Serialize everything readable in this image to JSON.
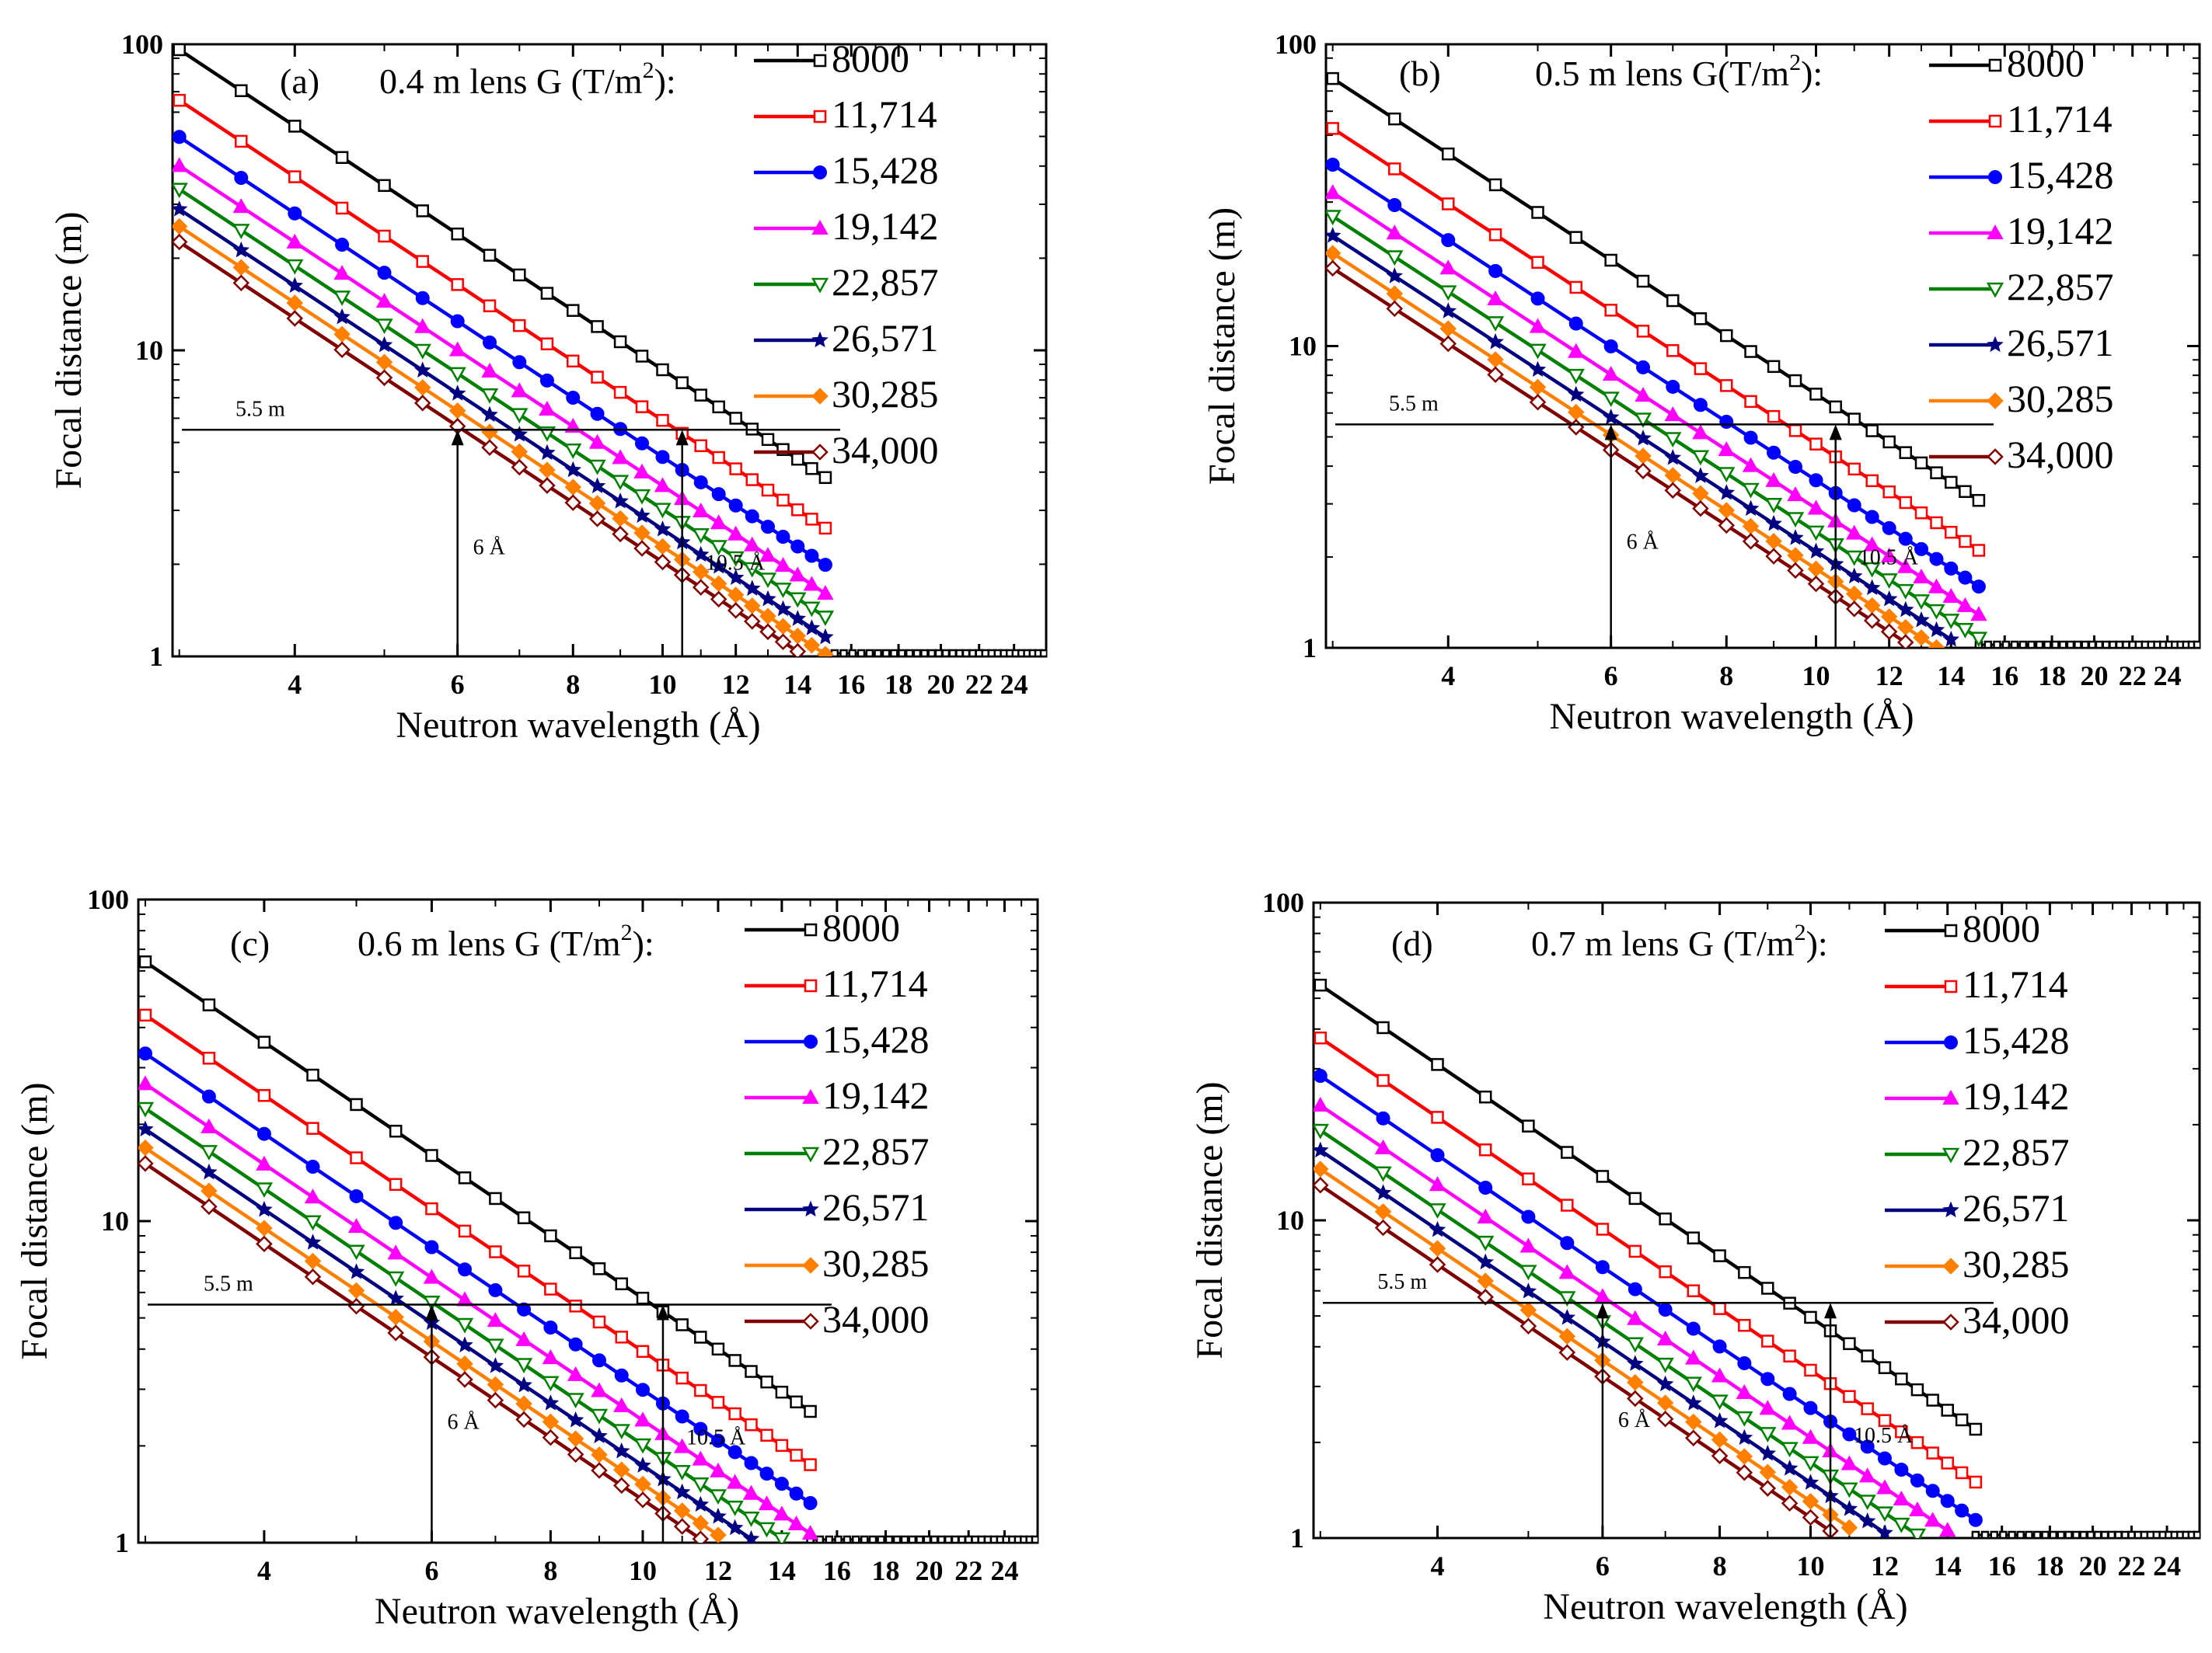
{
  "chart_data": [
    {
      "type": "line",
      "panel_label": "(a)",
      "title": "0.4 m lens G (T/m",
      "title_sup": "2",
      "title_tail": "):",
      "xlabel": "Neutron wavelength (Å)",
      "ylabel": "Focal distance (m)",
      "x_scale": "log",
      "y_scale": "log",
      "xlim": [
        2.95,
        26
      ],
      "ylim": [
        1,
        100
      ],
      "x_ticks": [
        4,
        6,
        8,
        10,
        12,
        14,
        16,
        18,
        20,
        22,
        24
      ],
      "x_tick_labels": [
        "4",
        "6",
        "8",
        "10",
        "12",
        "14",
        "16",
        "18",
        "20",
        "22",
        "24"
      ],
      "y_ticks": [
        1,
        10,
        100
      ],
      "y_tick_labels": [
        "1",
        "10",
        "100"
      ],
      "legend_title": "G (T/m²)",
      "series": [
        {
          "name": "8000",
          "F0": 96.0,
          "color": "#000000",
          "marker": "square-open"
        },
        {
          "name": "11,714",
          "F0": 65.6,
          "color": "#ff0000",
          "marker": "square-open"
        },
        {
          "name": "15,428",
          "F0": 49.8,
          "color": "#0000ff",
          "marker": "circle"
        },
        {
          "name": "19,142",
          "F0": 40.1,
          "color": "#ff00ff",
          "marker": "triangle-up"
        },
        {
          "name": "22,857",
          "F0": 33.6,
          "color": "#008000",
          "marker": "triangle-down-open"
        },
        {
          "name": "26,571",
          "F0": 28.9,
          "color": "#000080",
          "marker": "star"
        },
        {
          "name": "30,285",
          "F0": 25.4,
          "color": "#ff8000",
          "marker": "diamond"
        },
        {
          "name": "34,000",
          "F0": 22.6,
          "color": "#800000",
          "marker": "diamond-open"
        }
      ],
      "model": "F = F0 × (3/λ)^2, λ from 3 to 15 Å in 0.5 Å steps",
      "lambda_start": 3.0,
      "lambda_end": 15.0,
      "lambda_step": 0.5,
      "flat_line_y": 1,
      "reference_line": {
        "y": 5.5,
        "label": "5.5 m"
      },
      "arrows": [
        {
          "x": 6,
          "label": "6 Å"
        },
        {
          "x": 10.5,
          "label": "10.5 Å"
        }
      ]
    },
    {
      "type": "line",
      "panel_label": "(b)",
      "title": "0.5 m lens G(T/m",
      "title_sup": "2",
      "title_tail": "):",
      "xlabel": "Neutron wavelength (Å)",
      "ylabel": "Focal distance (m)",
      "x_scale": "log",
      "y_scale": "log",
      "xlim": [
        2.95,
        26
      ],
      "ylim": [
        1,
        100
      ],
      "x_ticks": [
        4,
        6,
        8,
        10,
        12,
        14,
        16,
        18,
        20,
        22,
        24
      ],
      "x_tick_labels": [
        "4",
        "6",
        "8",
        "10",
        "12",
        "14",
        "16",
        "18",
        "20",
        "22",
        "24"
      ],
      "y_ticks": [
        1,
        10,
        100
      ],
      "y_tick_labels": [
        "1",
        "10",
        "100"
      ],
      "legend_title": "G (T/m²)",
      "series": [
        {
          "name": "8000",
          "F0": 77.0,
          "color": "#000000",
          "marker": "square-open"
        },
        {
          "name": "11,714",
          "F0": 52.6,
          "color": "#ff0000",
          "marker": "square-open"
        },
        {
          "name": "15,428",
          "F0": 39.9,
          "color": "#0000ff",
          "marker": "circle"
        },
        {
          "name": "19,142",
          "F0": 32.2,
          "color": "#ff00ff",
          "marker": "triangle-up"
        },
        {
          "name": "22,857",
          "F0": 26.9,
          "color": "#008000",
          "marker": "triangle-down-open"
        },
        {
          "name": "26,571",
          "F0": 23.2,
          "color": "#000080",
          "marker": "star"
        },
        {
          "name": "30,285",
          "F0": 20.3,
          "color": "#ff8000",
          "marker": "diamond"
        },
        {
          "name": "34,000",
          "F0": 18.1,
          "color": "#800000",
          "marker": "diamond-open"
        }
      ],
      "model": "F = F0 × (3/λ)^2, λ from 3 to 15 Å in 0.5 Å steps",
      "lambda_start": 3.0,
      "lambda_end": 15.0,
      "lambda_step": 0.5,
      "flat_line_y": 1,
      "reference_line": {
        "y": 5.5,
        "label": "5.5 m"
      },
      "arrows": [
        {
          "x": 6,
          "label": "6 Å"
        },
        {
          "x": 10.5,
          "label": "10.5 Å"
        }
      ]
    },
    {
      "type": "line",
      "panel_label": "(c)",
      "title": "0.6 m lens G (T/m",
      "title_sup": "2",
      "title_tail": "):",
      "xlabel": "Neutron wavelength (Å)",
      "ylabel": "Focal distance (m)",
      "x_scale": "log",
      "y_scale": "log",
      "xlim": [
        2.95,
        26
      ],
      "ylim": [
        1,
        100
      ],
      "x_ticks": [
        4,
        6,
        8,
        10,
        12,
        14,
        16,
        18,
        20,
        22,
        24
      ],
      "x_tick_labels": [
        "4",
        "6",
        "8",
        "10",
        "12",
        "14",
        "16",
        "18",
        "20",
        "22",
        "24"
      ],
      "y_ticks": [
        1,
        10,
        100
      ],
      "y_tick_labels": [
        "1",
        "10",
        "100"
      ],
      "legend_title": "G (T/m²)",
      "series": [
        {
          "name": "8000",
          "F0": 64.0,
          "color": "#000000",
          "marker": "square-open"
        },
        {
          "name": "11,714",
          "F0": 43.7,
          "color": "#ff0000",
          "marker": "square-open"
        },
        {
          "name": "15,428",
          "F0": 33.2,
          "color": "#0000ff",
          "marker": "circle"
        },
        {
          "name": "19,142",
          "F0": 26.7,
          "color": "#ff00ff",
          "marker": "triangle-up"
        },
        {
          "name": "22,857",
          "F0": 22.4,
          "color": "#008000",
          "marker": "triangle-down-open"
        },
        {
          "name": "26,571",
          "F0": 19.3,
          "color": "#000080",
          "marker": "star"
        },
        {
          "name": "30,285",
          "F0": 16.9,
          "color": "#ff8000",
          "marker": "diamond"
        },
        {
          "name": "34,000",
          "F0": 15.1,
          "color": "#800000",
          "marker": "diamond-open"
        }
      ],
      "model": "F = F0 × (3/λ)^2, λ from 3 to 15 Å in 0.5 Å steps",
      "lambda_start": 3.0,
      "lambda_end": 15.0,
      "lambda_step": 0.5,
      "flat_line_y": 1,
      "reference_line": {
        "y": 5.5,
        "label": "5.5 m"
      },
      "arrows": [
        {
          "x": 6,
          "label": "6 Å"
        },
        {
          "x": 10.5,
          "label": "10.5 Å"
        }
      ]
    },
    {
      "type": "line",
      "panel_label": "(d)",
      "title": "0.7 m lens G (T/m",
      "title_sup": "2",
      "title_tail": "):",
      "xlabel": "Neutron wavelength (Å)",
      "ylabel": "Focal distance (m)",
      "x_scale": "log",
      "y_scale": "log",
      "xlim": [
        2.95,
        26
      ],
      "ylim": [
        1,
        100
      ],
      "x_ticks": [
        4,
        6,
        8,
        10,
        12,
        14,
        16,
        18,
        20,
        22,
        24
      ],
      "x_tick_labels": [
        "4",
        "6",
        "8",
        "10",
        "12",
        "14",
        "16",
        "18",
        "20",
        "22",
        "24"
      ],
      "y_ticks": [
        1,
        10,
        100
      ],
      "y_tick_labels": [
        "1",
        "10",
        "100"
      ],
      "legend_title": "G (T/m²)",
      "series": [
        {
          "name": "8000",
          "F0": 55.0,
          "color": "#000000",
          "marker": "square-open"
        },
        {
          "name": "11,714",
          "F0": 37.5,
          "color": "#ff0000",
          "marker": "square-open"
        },
        {
          "name": "15,428",
          "F0": 28.5,
          "color": "#0000ff",
          "marker": "circle"
        },
        {
          "name": "19,142",
          "F0": 23.0,
          "color": "#ff00ff",
          "marker": "triangle-up"
        },
        {
          "name": "22,857",
          "F0": 19.2,
          "color": "#008000",
          "marker": "triangle-down-open"
        },
        {
          "name": "26,571",
          "F0": 16.6,
          "color": "#000080",
          "marker": "star"
        },
        {
          "name": "30,285",
          "F0": 14.5,
          "color": "#ff8000",
          "marker": "diamond"
        },
        {
          "name": "34,000",
          "F0": 12.9,
          "color": "#800000",
          "marker": "diamond-open"
        }
      ],
      "model": "F = F0 × (3/λ)^2, λ from 3 to 15 Å in 0.5 Å steps",
      "lambda_start": 3.0,
      "lambda_end": 15.0,
      "lambda_step": 0.5,
      "flat_line_y": 1,
      "reference_line": {
        "y": 5.5,
        "label": "5.5 m"
      },
      "arrows": [
        {
          "x": 6,
          "label": "6 Å"
        },
        {
          "x": 10.5,
          "label": "10.5 Å"
        }
      ]
    }
  ]
}
